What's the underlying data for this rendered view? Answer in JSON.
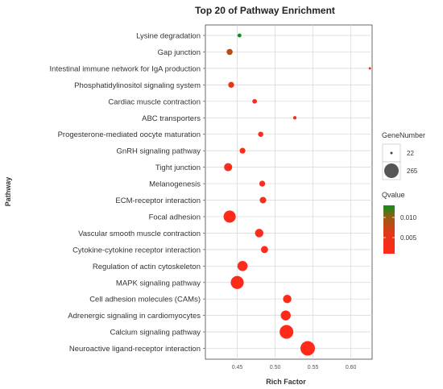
{
  "chart_data": {
    "type": "scatter",
    "title": "Top 20 of Pathway Enrichment",
    "xlabel": "Rich Factor",
    "ylabel": "Pathway",
    "xlim": [
      0.408,
      0.628
    ],
    "xticks": [
      {
        "value": 0.45,
        "label": "0.45"
      },
      {
        "value": 0.5,
        "label": "0.50"
      },
      {
        "value": 0.55,
        "label": "0.55"
      },
      {
        "value": 0.6,
        "label": "0.60"
      }
    ],
    "grid": true,
    "size_legend": {
      "title": "GeneNumber",
      "entries": [
        {
          "label": "22",
          "value": 22
        },
        {
          "label": "265",
          "value": 265
        }
      ]
    },
    "color_legend": {
      "title": "Qvalue",
      "ticks": [
        {
          "label": "0.010",
          "value": 0.01
        },
        {
          "label": "0.005",
          "value": 0.005
        }
      ],
      "range": [
        0.0,
        0.012
      ],
      "low_color": "#ff2a1a",
      "high_color": "#0c8f1f"
    },
    "points": [
      {
        "pathway": "Lysine degradation",
        "rich_factor": 0.453,
        "gene_number": 24,
        "qvalue": 0.0125
      },
      {
        "pathway": "Gap junction",
        "rich_factor": 0.44,
        "gene_number": 52,
        "qvalue": 0.0075
      },
      {
        "pathway": "Intestinal immune network for IgA production",
        "rich_factor": 0.625,
        "gene_number": 11,
        "qvalue": 0.004
      },
      {
        "pathway": "Phosphatidylinositol signaling system",
        "rich_factor": 0.442,
        "gene_number": 50,
        "qvalue": 0.005
      },
      {
        "pathway": "Cardiac muscle contraction",
        "rich_factor": 0.473,
        "gene_number": 32,
        "qvalue": 0.0015
      },
      {
        "pathway": "ABC transporters",
        "rich_factor": 0.526,
        "gene_number": 20,
        "qvalue": 0.0015
      },
      {
        "pathway": "Progesterone-mediated oocyte maturation",
        "rich_factor": 0.481,
        "gene_number": 40,
        "qvalue": 0.001
      },
      {
        "pathway": "GnRH signaling pathway",
        "rich_factor": 0.457,
        "gene_number": 48,
        "qvalue": 0.001
      },
      {
        "pathway": "Tight junction",
        "rich_factor": 0.438,
        "gene_number": 90,
        "qvalue": 0.001
      },
      {
        "pathway": "Melanogenesis",
        "rich_factor": 0.483,
        "gene_number": 50,
        "qvalue": 0.0008
      },
      {
        "pathway": "ECM-receptor interaction",
        "rich_factor": 0.484,
        "gene_number": 60,
        "qvalue": 0.0008
      },
      {
        "pathway": "Focal adhesion",
        "rich_factor": 0.44,
        "gene_number": 190,
        "qvalue": 0.0003
      },
      {
        "pathway": "Vascular smooth muscle contraction",
        "rich_factor": 0.479,
        "gene_number": 95,
        "qvalue": 0.0006
      },
      {
        "pathway": "Cytokine-cytokine receptor interaction",
        "rich_factor": 0.486,
        "gene_number": 70,
        "qvalue": 0.0006
      },
      {
        "pathway": "Regulation of actin cytoskeleton",
        "rich_factor": 0.457,
        "gene_number": 135,
        "qvalue": 0.0004
      },
      {
        "pathway": "MAPK signaling pathway",
        "rich_factor": 0.45,
        "gene_number": 215,
        "qvalue": 0.0002
      },
      {
        "pathway": "Cell adhesion molecules (CAMs)",
        "rich_factor": 0.516,
        "gene_number": 95,
        "qvalue": 0.0004
      },
      {
        "pathway": "Adrenergic signaling in cardiomyocytes",
        "rich_factor": 0.514,
        "gene_number": 130,
        "qvalue": 0.0003
      },
      {
        "pathway": "Calcium signaling pathway",
        "rich_factor": 0.515,
        "gene_number": 240,
        "qvalue": 0.0001
      },
      {
        "pathway": "Neuroactive ligand-receptor interaction",
        "rich_factor": 0.543,
        "gene_number": 265,
        "qvalue": 0.0001
      }
    ]
  }
}
